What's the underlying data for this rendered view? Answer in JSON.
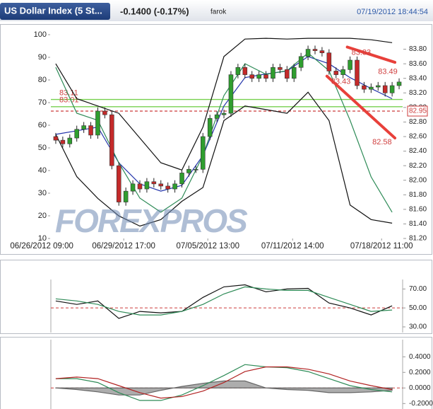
{
  "header": {
    "title": "US Dollar Index (5 St...",
    "change": "-0.1400 (-0.17%)",
    "user": "farok",
    "timestamp": "07/19/2012 18:44:54"
  },
  "watermark": "FOREXPROS",
  "chart_data": [
    {
      "type": "candlestick",
      "xlim": [
        -0.7,
        49.5
      ],
      "xticks": [
        {
          "value": -2,
          "label": "06/26/2012 09:00"
        },
        {
          "value": 9.7,
          "label": "06/29/2012 17:00"
        },
        {
          "value": 21.7,
          "label": "07/05/2012 13:00"
        },
        {
          "value": 33.8,
          "label": "07/11/2012 14:00"
        },
        {
          "value": 46.5,
          "label": "07/18/2012 11:00"
        }
      ],
      "ylim": [
        10,
        100
      ],
      "yticks": [
        10,
        20,
        30,
        40,
        50,
        60,
        70,
        80,
        90,
        100
      ],
      "y2lim": [
        81.2,
        84.0
      ],
      "y2ticks": [
        {
          "value": 81.2,
          "label": "81.20"
        },
        {
          "value": 81.4,
          "label": "81.40"
        },
        {
          "value": 81.6,
          "label": "81.60"
        },
        {
          "value": 81.8,
          "label": "81.80"
        },
        {
          "value": 82.0,
          "label": "82.00"
        },
        {
          "value": 82.2,
          "label": "82.20"
        },
        {
          "value": 82.4,
          "label": "82.40"
        },
        {
          "value": 82.6,
          "label": "82.60"
        },
        {
          "value": 82.8,
          "label": "82.80"
        },
        {
          "value": 83.0,
          "label": "83.00"
        },
        {
          "value": 83.2,
          "label": "83.20"
        },
        {
          "value": 83.4,
          "label": "83.40"
        },
        {
          "value": 83.6,
          "label": "83.60"
        },
        {
          "value": 83.8,
          "label": "83.80"
        }
      ],
      "up_color": "#2f9e2f",
      "down_color": "#c42a2a",
      "open": [
        82.6,
        82.55,
        82.5,
        82.58,
        82.7,
        82.75,
        82.62,
        82.95,
        82.9,
        82.2,
        81.7,
        81.85,
        81.95,
        81.88,
        81.98,
        81.95,
        81.92,
        81.88,
        81.95,
        82.1,
        82.15,
        82.15,
        82.6,
        82.85,
        82.9,
        82.92,
        83.45,
        83.55,
        83.45,
        83.4,
        83.45,
        83.4,
        83.55,
        83.52,
        83.4,
        83.55,
        83.7,
        83.8,
        83.78,
        83.75,
        83.5,
        83.45,
        83.52,
        83.65,
        83.3,
        83.25,
        83.28,
        83.3,
        83.2,
        83.3
      ],
      "high": [
        82.65,
        82.6,
        82.63,
        82.75,
        82.8,
        82.8,
        83.0,
        83.0,
        82.95,
        82.25,
        81.9,
        82.0,
        82.0,
        82.03,
        82.03,
        82.0,
        81.97,
        82.0,
        82.15,
        82.2,
        82.2,
        82.65,
        82.9,
        82.95,
        82.97,
        83.5,
        83.6,
        83.6,
        83.5,
        83.5,
        83.5,
        83.6,
        83.6,
        83.57,
        83.6,
        83.75,
        83.85,
        83.85,
        83.83,
        83.8,
        83.55,
        83.57,
        83.7,
        83.7,
        83.35,
        83.33,
        83.35,
        83.35,
        83.35,
        83.4
      ],
      "low": [
        82.5,
        82.45,
        82.45,
        82.53,
        82.65,
        82.57,
        82.57,
        82.85,
        82.15,
        81.65,
        81.65,
        81.8,
        81.83,
        81.83,
        81.9,
        81.87,
        81.83,
        81.83,
        81.9,
        82.05,
        82.1,
        82.1,
        82.55,
        82.8,
        82.85,
        82.87,
        83.4,
        83.4,
        83.35,
        83.35,
        83.35,
        83.35,
        83.47,
        83.35,
        83.35,
        83.5,
        83.65,
        83.73,
        83.7,
        83.45,
        83.4,
        83.4,
        83.47,
        83.25,
        83.2,
        83.2,
        83.23,
        83.15,
        83.15,
        83.25
      ],
      "close": [
        82.55,
        82.5,
        82.58,
        82.7,
        82.75,
        82.62,
        82.95,
        82.9,
        82.2,
        81.7,
        81.85,
        81.95,
        81.88,
        81.98,
        81.95,
        81.92,
        81.88,
        81.95,
        82.1,
        82.15,
        82.15,
        82.6,
        82.85,
        82.9,
        82.92,
        83.45,
        83.55,
        83.45,
        83.4,
        83.45,
        83.4,
        83.55,
        83.52,
        83.4,
        83.55,
        83.7,
        83.8,
        83.78,
        83.75,
        83.5,
        83.45,
        83.52,
        83.65,
        83.3,
        83.25,
        83.28,
        83.3,
        83.2,
        83.3,
        83.35
      ],
      "series": [
        {
          "color": "#111111",
          "axis": "y2",
          "x": [
            0,
            3,
            6,
            9,
            12,
            15,
            18,
            21,
            24,
            27,
            30,
            33,
            36,
            39,
            42,
            45,
            48
          ],
          "values": [
            83.6,
            83.12,
            83.02,
            82.92,
            82.58,
            82.24,
            82.14,
            82.73,
            83.7,
            83.94,
            83.95,
            83.94,
            83.95,
            83.95,
            83.95,
            83.93,
            83.89
          ]
        },
        {
          "color": "#111111",
          "axis": "y2",
          "x": [
            0,
            3,
            6,
            9,
            12,
            15,
            18,
            21,
            24,
            27,
            30,
            33,
            36,
            39,
            42,
            45,
            48
          ],
          "values": [
            82.63,
            82.05,
            81.75,
            81.51,
            81.37,
            81.46,
            81.71,
            81.9,
            82.82,
            83.02,
            82.97,
            82.92,
            83.21,
            82.82,
            81.66,
            81.46,
            81.41
          ]
        },
        {
          "color": "#2233aa",
          "axis": "y2",
          "x": [
            0,
            3,
            6,
            9,
            12,
            15,
            18,
            21,
            24,
            27,
            30,
            33,
            36,
            39,
            42,
            45,
            48
          ],
          "values": [
            82.63,
            82.68,
            82.73,
            82.24,
            81.95,
            81.85,
            81.93,
            82.34,
            83.02,
            83.41,
            83.46,
            83.5,
            83.7,
            83.6,
            83.41,
            83.26,
            83.12
          ]
        },
        {
          "color": "#2e8b57",
          "axis": "y",
          "x": [
            0,
            3,
            6,
            9,
            12,
            15,
            18,
            21,
            24,
            27,
            30,
            33,
            36,
            39,
            42,
            45,
            48
          ],
          "values": [
            85.6,
            65.3,
            62.2,
            43.4,
            27.8,
            21.6,
            27.8,
            46.6,
            73.1,
            87.2,
            82.5,
            84.1,
            91.9,
            84.1,
            62.2,
            37.2,
            21.6
          ]
        }
      ],
      "hlines": [
        {
          "value": 83.11,
          "color": "#77d14f",
          "label_side": "left"
        },
        {
          "value": 83.01,
          "color": "#77d14f",
          "label_side": "left"
        },
        {
          "value": 82.95,
          "color": "#cc3b3b",
          "dashed": true,
          "label_side": "right"
        }
      ],
      "trendlines": [
        {
          "color": "#e8403a",
          "x": [
            41.6,
            48.4
          ],
          "values": [
            83.83,
            83.62
          ],
          "label_end": "start"
        },
        {
          "color": "#e8403a",
          "x": [
            38.7,
            48.4
          ],
          "values": [
            83.43,
            82.58
          ],
          "label_end": "both"
        }
      ],
      "price_labels": [
        {
          "x": 46.0,
          "value": 83.49
        }
      ]
    },
    {
      "type": "line",
      "ylim": [
        24,
        80
      ],
      "yticks": [
        {
          "value": 30,
          "label": "30.00"
        },
        {
          "value": 50,
          "label": "50.00"
        },
        {
          "value": 70,
          "label": "70.00"
        }
      ],
      "hlines": [
        {
          "value": 50,
          "color": "#cc3b3b",
          "dashed": true
        }
      ],
      "series": [
        {
          "color": "#111111",
          "x": [
            0,
            3,
            6,
            9,
            12,
            15,
            18,
            21,
            24,
            27,
            30,
            33,
            36,
            39,
            42,
            45,
            48
          ],
          "values": [
            57.4,
            53.7,
            57.4,
            38.9,
            46.3,
            44.8,
            46.3,
            61.1,
            72.2,
            74.4,
            67.0,
            70.0,
            70.7,
            55.2,
            50.0,
            42.6,
            52.2
          ]
        },
        {
          "color": "#2e8b57",
          "x": [
            0,
            3,
            6,
            9,
            12,
            15,
            18,
            21,
            24,
            27,
            30,
            33,
            36,
            39,
            42,
            45,
            48
          ],
          "values": [
            59.6,
            57.4,
            53.7,
            46.3,
            42.6,
            42.6,
            46.3,
            53.7,
            64.8,
            72.2,
            70.0,
            68.5,
            68.5,
            61.1,
            53.7,
            46.3,
            47.8
          ]
        }
      ]
    },
    {
      "type": "line",
      "ylim": [
        -0.27,
        0.62
      ],
      "yticks": [
        {
          "value": -0.2,
          "label": "-0.2000"
        },
        {
          "value": 0,
          "label": "0.0000"
        },
        {
          "value": 0.2,
          "label": "0.2000"
        },
        {
          "value": 0.4,
          "label": "0.4000"
        }
      ],
      "hlines": [
        {
          "value": 0,
          "color": "#cc3b3b",
          "dashed": true
        }
      ],
      "series": [
        {
          "color": "#999999",
          "fill": true,
          "x": [
            0,
            3,
            6,
            9,
            12,
            15,
            18,
            21,
            24,
            27,
            30,
            33,
            36,
            39,
            42,
            45,
            48
          ],
          "values": [
            0.0,
            -0.02,
            -0.05,
            -0.09,
            -0.09,
            -0.03,
            0.02,
            0.06,
            0.09,
            0.09,
            0.0,
            -0.02,
            -0.03,
            -0.06,
            -0.06,
            -0.05,
            -0.03
          ]
        },
        {
          "color": "#2e8b57",
          "x": [
            0,
            3,
            6,
            9,
            12,
            15,
            18,
            21,
            24,
            27,
            30,
            33,
            36,
            39,
            42,
            45,
            48
          ],
          "values": [
            0.12,
            0.12,
            0.07,
            -0.06,
            -0.16,
            -0.16,
            -0.09,
            0.03,
            0.16,
            0.3,
            0.27,
            0.26,
            0.21,
            0.12,
            0.03,
            -0.02,
            -0.05
          ]
        },
        {
          "color": "#b22222",
          "x": [
            0,
            3,
            6,
            9,
            12,
            15,
            18,
            21,
            24,
            27,
            30,
            33,
            36,
            39,
            42,
            45,
            48
          ],
          "values": [
            0.12,
            0.14,
            0.12,
            0.03,
            -0.06,
            -0.13,
            -0.11,
            -0.04,
            0.07,
            0.21,
            0.27,
            0.27,
            0.24,
            0.18,
            0.09,
            0.03,
            -0.02
          ]
        }
      ]
    }
  ]
}
